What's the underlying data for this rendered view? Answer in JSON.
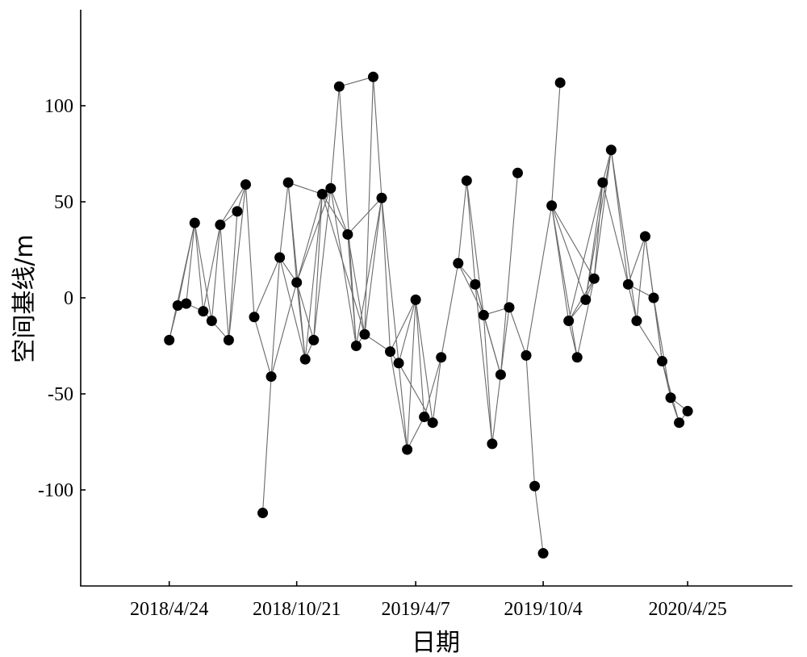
{
  "chart_data": {
    "type": "scatter",
    "xlabel": "日期",
    "ylabel": "空间基线/m",
    "ylim": [
      -150,
      150
    ],
    "yticks": [
      100,
      50,
      0,
      -50,
      -100
    ],
    "ytick_labels": [
      "100",
      "50",
      "0",
      "-50",
      "-100"
    ],
    "xticks": [
      "2018-04-24",
      "2018-10-21",
      "2019-04-07",
      "2019-10-04",
      "2020-04-25"
    ],
    "xtick_labels": [
      "2018/4/24",
      "2018/10/21",
      "2019/4/7",
      "2019/10/4",
      "2020/4/25"
    ],
    "xlim": [
      "2017-12-20",
      "2020-09-20"
    ],
    "points": [
      {
        "x": "2018-04-24",
        "y": -22
      },
      {
        "x": "2018-05-06",
        "y": -4
      },
      {
        "x": "2018-05-18",
        "y": -3
      },
      {
        "x": "2018-05-30",
        "y": 39
      },
      {
        "x": "2018-06-11",
        "y": -7
      },
      {
        "x": "2018-06-23",
        "y": -12
      },
      {
        "x": "2018-07-05",
        "y": 38
      },
      {
        "x": "2018-07-17",
        "y": -22
      },
      {
        "x": "2018-07-29",
        "y": 45
      },
      {
        "x": "2018-08-10",
        "y": 59
      },
      {
        "x": "2018-08-22",
        "y": -10
      },
      {
        "x": "2018-09-03",
        "y": -112
      },
      {
        "x": "2018-09-15",
        "y": -41
      },
      {
        "x": "2018-09-27",
        "y": 21
      },
      {
        "x": "2018-10-09",
        "y": 60
      },
      {
        "x": "2018-10-21",
        "y": 8
      },
      {
        "x": "2018-11-02",
        "y": -32
      },
      {
        "x": "2018-11-14",
        "y": -22
      },
      {
        "x": "2018-11-26",
        "y": 54
      },
      {
        "x": "2018-12-08",
        "y": 57
      },
      {
        "x": "2018-12-20",
        "y": 110
      },
      {
        "x": "2019-01-01",
        "y": 33
      },
      {
        "x": "2019-01-13",
        "y": -25
      },
      {
        "x": "2019-01-25",
        "y": -19
      },
      {
        "x": "2019-02-06",
        "y": 115
      },
      {
        "x": "2019-02-18",
        "y": 52
      },
      {
        "x": "2019-03-02",
        "y": -28
      },
      {
        "x": "2019-03-14",
        "y": -34
      },
      {
        "x": "2019-03-26",
        "y": -79
      },
      {
        "x": "2019-04-07",
        "y": -1
      },
      {
        "x": "2019-04-19",
        "y": -62
      },
      {
        "x": "2019-05-01",
        "y": -65
      },
      {
        "x": "2019-05-13",
        "y": -31
      },
      {
        "x": "2019-06-06",
        "y": 18
      },
      {
        "x": "2019-06-18",
        "y": 61
      },
      {
        "x": "2019-06-30",
        "y": 7
      },
      {
        "x": "2019-07-12",
        "y": -9
      },
      {
        "x": "2019-07-24",
        "y": -76
      },
      {
        "x": "2019-08-05",
        "y": -40
      },
      {
        "x": "2019-08-17",
        "y": -5
      },
      {
        "x": "2019-08-29",
        "y": 65
      },
      {
        "x": "2019-09-10",
        "y": -30
      },
      {
        "x": "2019-09-22",
        "y": -98
      },
      {
        "x": "2019-10-04",
        "y": -133
      },
      {
        "x": "2019-10-16",
        "y": 48
      },
      {
        "x": "2019-10-28",
        "y": 112
      },
      {
        "x": "2019-11-09",
        "y": -12
      },
      {
        "x": "2019-11-21",
        "y": -31
      },
      {
        "x": "2019-12-03",
        "y": -1
      },
      {
        "x": "2019-12-15",
        "y": 10
      },
      {
        "x": "2019-12-27",
        "y": 60
      },
      {
        "x": "2020-01-08",
        "y": 77
      },
      {
        "x": "2020-02-01",
        "y": 7
      },
      {
        "x": "2020-02-13",
        "y": -12
      },
      {
        "x": "2020-02-25",
        "y": 32
      },
      {
        "x": "2020-03-08",
        "y": 0
      },
      {
        "x": "2020-03-20",
        "y": -33
      },
      {
        "x": "2020-04-01",
        "y": -52
      },
      {
        "x": "2020-04-13",
        "y": -65
      },
      {
        "x": "2020-04-25",
        "y": -59
      }
    ],
    "edges": [
      [
        0,
        1
      ],
      [
        0,
        3
      ],
      [
        1,
        2
      ],
      [
        1,
        3
      ],
      [
        2,
        3
      ],
      [
        2,
        4
      ],
      [
        3,
        4
      ],
      [
        3,
        5
      ],
      [
        4,
        5
      ],
      [
        4,
        6
      ],
      [
        5,
        6
      ],
      [
        5,
        7
      ],
      [
        6,
        7
      ],
      [
        6,
        8
      ],
      [
        6,
        9
      ],
      [
        7,
        8
      ],
      [
        7,
        9
      ],
      [
        8,
        9
      ],
      [
        9,
        10
      ],
      [
        10,
        12
      ],
      [
        10,
        13
      ],
      [
        11,
        12
      ],
      [
        12,
        13
      ],
      [
        12,
        15
      ],
      [
        13,
        14
      ],
      [
        13,
        15
      ],
      [
        13,
        16
      ],
      [
        14,
        15
      ],
      [
        14,
        16
      ],
      [
        14,
        18
      ],
      [
        15,
        16
      ],
      [
        15,
        17
      ],
      [
        15,
        18
      ],
      [
        15,
        19
      ],
      [
        16,
        17
      ],
      [
        16,
        18
      ],
      [
        17,
        18
      ],
      [
        17,
        19
      ],
      [
        18,
        19
      ],
      [
        18,
        21
      ],
      [
        18,
        23
      ],
      [
        19,
        20
      ],
      [
        19,
        21
      ],
      [
        19,
        22
      ],
      [
        20,
        22
      ],
      [
        20,
        24
      ],
      [
        21,
        22
      ],
      [
        21,
        23
      ],
      [
        21,
        25
      ],
      [
        22,
        23
      ],
      [
        22,
        25
      ],
      [
        23,
        24
      ],
      [
        23,
        25
      ],
      [
        23,
        26
      ],
      [
        24,
        25
      ],
      [
        25,
        26
      ],
      [
        25,
        27
      ],
      [
        26,
        27
      ],
      [
        26,
        28
      ],
      [
        26,
        29
      ],
      [
        27,
        28
      ],
      [
        27,
        29
      ],
      [
        27,
        31
      ],
      [
        28,
        29
      ],
      [
        28,
        30
      ],
      [
        29,
        30
      ],
      [
        29,
        31
      ],
      [
        30,
        31
      ],
      [
        30,
        32
      ],
      [
        31,
        32
      ],
      [
        32,
        33
      ],
      [
        33,
        34
      ],
      [
        33,
        35
      ],
      [
        33,
        36
      ],
      [
        34,
        35
      ],
      [
        34,
        36
      ],
      [
        35,
        36
      ],
      [
        35,
        37
      ],
      [
        35,
        38
      ],
      [
        36,
        37
      ],
      [
        36,
        38
      ],
      [
        36,
        39
      ],
      [
        37,
        38
      ],
      [
        38,
        39
      ],
      [
        38,
        40
      ],
      [
        39,
        41
      ],
      [
        41,
        42
      ],
      [
        42,
        43
      ],
      [
        41,
        44
      ],
      [
        44,
        45
      ],
      [
        44,
        46
      ],
      [
        44,
        47
      ],
      [
        44,
        48
      ],
      [
        44,
        49
      ],
      [
        46,
        47
      ],
      [
        46,
        48
      ],
      [
        46,
        49
      ],
      [
        46,
        50
      ],
      [
        47,
        49
      ],
      [
        48,
        49
      ],
      [
        48,
        50
      ],
      [
        48,
        51
      ],
      [
        49,
        50
      ],
      [
        49,
        51
      ],
      [
        50,
        51
      ],
      [
        50,
        52
      ],
      [
        51,
        52
      ],
      [
        51,
        53
      ],
      [
        52,
        53
      ],
      [
        52,
        54
      ],
      [
        52,
        55
      ],
      [
        53,
        54
      ],
      [
        53,
        56
      ],
      [
        54,
        55
      ],
      [
        54,
        56
      ],
      [
        55,
        56
      ],
      [
        55,
        57
      ],
      [
        56,
        57
      ],
      [
        56,
        58
      ],
      [
        57,
        58
      ],
      [
        57,
        59
      ],
      [
        58,
        59
      ]
    ]
  }
}
